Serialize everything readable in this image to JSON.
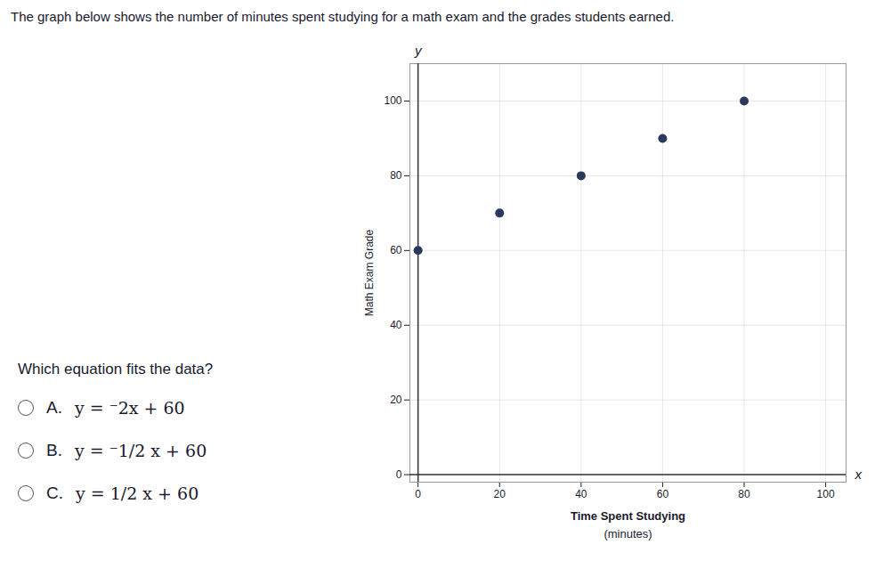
{
  "chart_data": {
    "type": "scatter",
    "title": "The graph below shows the number of minutes spent studying for a math exam and the grades students earned.",
    "x": [
      0,
      20,
      40,
      60,
      80
    ],
    "values": [
      60,
      70,
      80,
      90,
      100
    ],
    "color": "#2b3a5c",
    "xlabel": "Time Spent Studying",
    "xlabel_sub": "(minutes)",
    "ylabel": "Math Exam Grade",
    "xlim": [
      -2,
      105
    ],
    "ylim": [
      -2,
      110
    ],
    "xticks": [
      0,
      20,
      40,
      60,
      80,
      100
    ],
    "yticks": [
      0,
      20,
      40,
      60,
      80,
      100
    ],
    "grid": true,
    "annotations": [
      "x",
      "y"
    ],
    "question": "Which equation fits the data?",
    "options": [
      {
        "label": "A.",
        "text": "y = ⁻2x + 60"
      },
      {
        "label": "B.",
        "text": "y = ⁻1/2 x + 60"
      },
      {
        "label": "C.",
        "text": "y = 1/2 x + 60"
      }
    ]
  }
}
